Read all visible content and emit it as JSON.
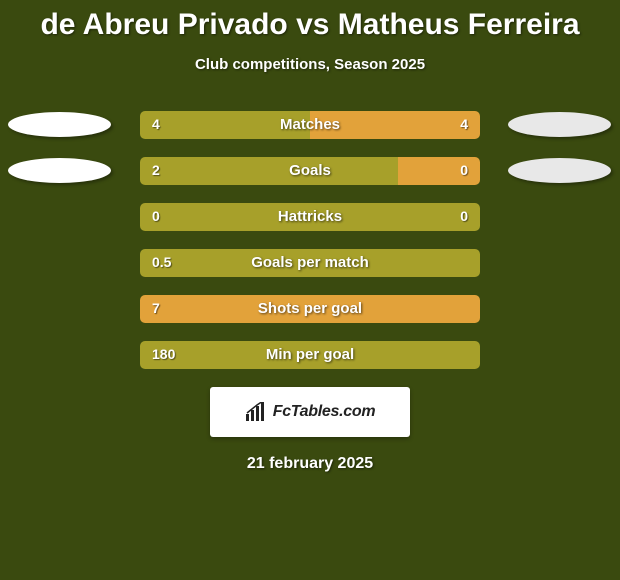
{
  "title": "de Abreu Privado vs Matheus Ferreira",
  "subtitle": "Club competitions, Season 2025",
  "date": "21 february 2025",
  "logo_text": "FcTables.com",
  "colors": {
    "background": "#3a4a0f",
    "bar_primary": "#a7a02a",
    "bar_secondary": "#e2a23a",
    "ellipse_left": "#ffffff",
    "ellipse_right": "#e8e8e8",
    "text": "#ffffff"
  },
  "stats": [
    {
      "label": "Matches",
      "left_value": "4",
      "right_value": "4",
      "left_pct": 50,
      "right_pct": 50,
      "left_color": "#a7a02a",
      "right_color": "#e2a23a",
      "show_ellipses": true
    },
    {
      "label": "Goals",
      "left_value": "2",
      "right_value": "0",
      "left_pct": 76,
      "right_pct": 24,
      "left_color": "#a7a02a",
      "right_color": "#e2a23a",
      "show_ellipses": true
    },
    {
      "label": "Hattricks",
      "left_value": "0",
      "right_value": "0",
      "left_pct": 100,
      "right_pct": 0,
      "left_color": "#a7a02a",
      "right_color": "#e2a23a",
      "show_ellipses": false
    },
    {
      "label": "Goals per match",
      "left_value": "0.5",
      "right_value": "",
      "left_pct": 100,
      "right_pct": 0,
      "left_color": "#a7a02a",
      "right_color": "#e2a23a",
      "show_ellipses": false
    },
    {
      "label": "Shots per goal",
      "left_value": "7",
      "right_value": "",
      "left_pct": 100,
      "right_pct": 0,
      "left_color": "#e2a23a",
      "right_color": "#a7a02a",
      "show_ellipses": false
    },
    {
      "label": "Min per goal",
      "left_value": "180",
      "right_value": "",
      "left_pct": 100,
      "right_pct": 0,
      "left_color": "#a7a02a",
      "right_color": "#e2a23a",
      "show_ellipses": false
    }
  ]
}
